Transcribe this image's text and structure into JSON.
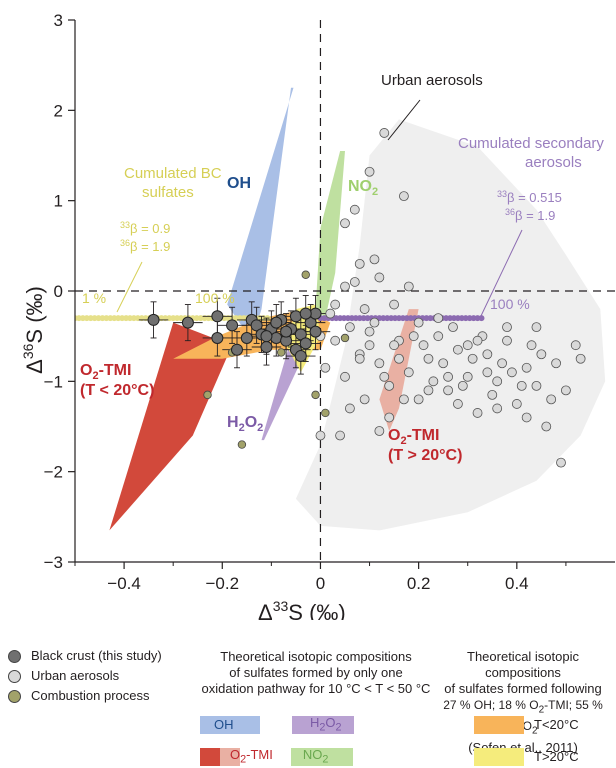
{
  "chart_data": {
    "type": "scatter",
    "xlabel": "Δ³³S (‰)",
    "ylabel": "Δ³⁶S (‰)",
    "xlim": [
      -0.5,
      0.6
    ],
    "ylim": [
      -3,
      3
    ],
    "xticks": [
      -0.4,
      -0.2,
      0,
      0.2,
      0.4
    ],
    "xtick_labels": [
      "−0.4",
      "−0.2",
      "0",
      "0.2",
      "0.4"
    ],
    "yticks": [
      -3,
      -2,
      -1,
      0,
      1,
      2,
      3
    ],
    "ytick_labels": [
      "−3",
      "−2",
      "−1",
      "0",
      "1",
      "2",
      "3"
    ],
    "reference_lines": [
      {
        "axis": "x",
        "value": 0,
        "style": "dashed"
      },
      {
        "axis": "y",
        "value": 0,
        "style": "dashed"
      }
    ],
    "colors": {
      "black_crust": "#707070",
      "urban": "#d9d9d9",
      "combustion": "#a2a26a",
      "oh": "#a9bfe6",
      "h2o2": "#b9a2d2",
      "o2tmi_dark": "#d2493b",
      "o2tmi_light": "#e9b0a3",
      "no2": "#bfe0a0",
      "t_lt20": "#f8b45a",
      "t_gt20": "#f5ec7c",
      "bc_line": "#e6e08a",
      "secondary_line": "#8c6bb1",
      "envelope": "#efefef"
    },
    "series": [
      {
        "name": "Black crust (this study)",
        "points": [
          [
            -0.34,
            -0.32
          ],
          [
            -0.27,
            -0.35
          ],
          [
            -0.21,
            -0.28
          ],
          [
            -0.21,
            -0.52
          ],
          [
            -0.18,
            -0.38
          ],
          [
            -0.17,
            -0.65
          ],
          [
            -0.15,
            -0.52
          ],
          [
            -0.14,
            -0.32
          ],
          [
            -0.13,
            -0.38
          ],
          [
            -0.12,
            -0.48
          ],
          [
            -0.11,
            -0.62
          ],
          [
            -0.1,
            -0.42
          ],
          [
            -0.09,
            -0.52
          ],
          [
            -0.08,
            -0.32
          ],
          [
            -0.07,
            -0.55
          ],
          [
            -0.06,
            -0.42
          ],
          [
            -0.05,
            -0.28
          ],
          [
            -0.04,
            -0.48
          ],
          [
            -0.03,
            -0.58
          ],
          [
            -0.02,
            -0.35
          ],
          [
            -0.01,
            -0.25
          ],
          [
            -0.05,
            -0.65
          ],
          [
            -0.09,
            -0.35
          ],
          [
            -0.11,
            -0.5
          ],
          [
            -0.07,
            -0.45
          ],
          [
            -0.04,
            -0.72
          ],
          [
            -0.03,
            -0.25
          ],
          [
            -0.01,
            -0.45
          ]
        ],
        "error_x": 0.03,
        "error_y": 0.2
      },
      {
        "name": "Urban aerosols",
        "points": [
          [
            0.03,
            -0.55
          ],
          [
            0.05,
            -0.95
          ],
          [
            0.08,
            -0.7
          ],
          [
            0.1,
            -0.45
          ],
          [
            0.12,
            -0.8
          ],
          [
            0.14,
            -1.05
          ],
          [
            0.16,
            -0.55
          ],
          [
            0.18,
            -0.9
          ],
          [
            0.2,
            -1.2
          ],
          [
            0.22,
            -0.75
          ],
          [
            0.24,
            -0.5
          ],
          [
            0.26,
            -1.1
          ],
          [
            0.28,
            -0.65
          ],
          [
            0.3,
            -0.95
          ],
          [
            0.32,
            -1.35
          ],
          [
            0.34,
            -0.7
          ],
          [
            0.36,
            -1.0
          ],
          [
            0.38,
            -0.55
          ],
          [
            0.4,
            -1.25
          ],
          [
            0.42,
            -0.85
          ],
          [
            0.44,
            -1.05
          ],
          [
            0.46,
            -1.5
          ],
          [
            0.48,
            -0.8
          ],
          [
            0.5,
            -1.1
          ],
          [
            0.52,
            -0.6
          ],
          [
            0.1,
            1.32
          ],
          [
            0.13,
            1.75
          ],
          [
            0.17,
            1.05
          ],
          [
            0.05,
            0.75
          ],
          [
            0.07,
            0.9
          ],
          [
            0.08,
            0.3
          ],
          [
            0.12,
            0.15
          ],
          [
            0.15,
            -0.15
          ],
          [
            0.18,
            0.05
          ],
          [
            0.09,
            -0.2
          ],
          [
            0.04,
            -1.6
          ],
          [
            0.06,
            -1.3
          ],
          [
            0.09,
            -1.2
          ],
          [
            0.14,
            -1.4
          ],
          [
            0.2,
            -0.35
          ],
          [
            0.23,
            -1.0
          ],
          [
            0.27,
            -0.4
          ],
          [
            0.31,
            -0.75
          ],
          [
            0.35,
            -1.15
          ],
          [
            0.39,
            -0.9
          ],
          [
            0.43,
            -0.6
          ],
          [
            0.47,
            -1.2
          ],
          [
            0.49,
            -1.9
          ],
          [
            0.53,
            -0.75
          ],
          [
            0.11,
            -0.35
          ],
          [
            0.16,
            -0.75
          ],
          [
            0.21,
            -0.6
          ],
          [
            0.25,
            -0.8
          ],
          [
            0.29,
            -1.05
          ],
          [
            0.33,
            -0.5
          ],
          [
            0.37,
            -0.8
          ],
          [
            0.41,
            -1.05
          ],
          [
            0.45,
            -0.7
          ],
          [
            0.02,
            -0.25
          ],
          [
            0.0,
            -0.5
          ],
          [
            0.01,
            -0.85
          ],
          [
            0.06,
            -0.4
          ],
          [
            0.1,
            -0.6
          ],
          [
            0.13,
            -0.95
          ],
          [
            0.19,
            -0.5
          ],
          [
            0.22,
            -1.1
          ],
          [
            0.26,
            -0.95
          ],
          [
            0.3,
            -0.6
          ],
          [
            0.34,
            -0.9
          ],
          [
            0.38,
            -0.4
          ],
          [
            0.42,
            -1.4
          ],
          [
            0.08,
            -0.75
          ],
          [
            0.15,
            -0.6
          ],
          [
            0.24,
            -0.3
          ],
          [
            0.28,
            -1.25
          ],
          [
            0.32,
            -0.55
          ],
          [
            0.36,
            -1.3
          ],
          [
            0.44,
            -0.4
          ],
          [
            0.05,
            0.05
          ],
          [
            0.11,
            0.35
          ],
          [
            0.0,
            -1.6
          ],
          [
            0.03,
            -0.15
          ],
          [
            0.07,
            0.1
          ],
          [
            0.12,
            -1.55
          ],
          [
            0.17,
            -1.2
          ]
        ]
      },
      {
        "name": "Combustion process",
        "points": [
          [
            -0.23,
            -1.15
          ],
          [
            -0.18,
            -0.68
          ],
          [
            -0.16,
            -1.7
          ],
          [
            -0.03,
            0.18
          ],
          [
            0.01,
            -1.35
          ],
          [
            -0.01,
            -1.15
          ],
          [
            0.05,
            -0.52
          ],
          [
            -0.08,
            -0.68
          ]
        ]
      }
    ],
    "annotations": [
      {
        "text": "Urban aerosols",
        "color": "#231f20"
      },
      {
        "text": "Cumulated secondary aerosols",
        "color": "#9a7fbf"
      },
      {
        "text": "Cumulated BC sulfates",
        "color": "#d6cf55"
      },
      {
        "text": "OH",
        "color": "#1f4e8c"
      },
      {
        "text": "NO₂",
        "color": "#9fcf6e"
      },
      {
        "text": "O₂-TMI (T < 20°C)",
        "color": "#c0282d"
      },
      {
        "text": "O₂-TMI (T > 20°C)",
        "color": "#c0282d"
      },
      {
        "text": "H₂O₂",
        "color": "#7b5aa6"
      },
      {
        "text": "1 %",
        "color": "#d6cf55"
      },
      {
        "text": "100 %",
        "color": "#d6cf55"
      },
      {
        "text": "100 %",
        "color": "#9a7fbf"
      },
      {
        "text": "³³β = 0.9 ³⁶β = 1.9",
        "color": "#d6cf55"
      },
      {
        "text": "³³β = 0.515 ³⁶β = 1.9",
        "color": "#9a7fbf"
      }
    ]
  },
  "labels": {
    "urban": "Urban aerosols",
    "secondary_1": "Cumulated  secondary",
    "secondary_2": "aerosols",
    "bc_1": "Cumulated BC",
    "bc_2": "sulfates",
    "oh": "OH",
    "no2_main": "NO",
    "no2_sub": "2",
    "h2o2_h": "H",
    "h2o2_2a": "2",
    "h2o2_o": "O",
    "h2o2_2b": "2",
    "o2tmi_lt_a": "O",
    "o2tmi_lt_sub": "2",
    "o2tmi_lt_b": "-TMI",
    "o2tmi_lt_c": "(T < 20°C)",
    "o2tmi_gt_a": "O",
    "o2tmi_gt_sub": "2",
    "o2tmi_gt_b": "-TMI",
    "o2tmi_gt_c": "(T > 20°C)",
    "pct1": "1 %",
    "pct100_bc": "100 %",
    "pct100_sec": "100 %",
    "beta_bc_33_sup": "33",
    "beta_bc_33": "β = 0.9",
    "beta_bc_36_sup": "36",
    "beta_bc_36": "β = 1.9",
    "beta_sec_33_sup": "33",
    "beta_sec_33": "β = 0.515",
    "beta_sec_36_sup": "36",
    "beta_sec_36": "β = 1.9",
    "xlabel_delta": "Δ",
    "xlabel_sup": "33",
    "xlabel_rest": "S (‰)",
    "ylabel_delta": "Δ",
    "ylabel_sup": "36",
    "ylabel_rest": "S (‰)"
  },
  "legend": {
    "points": [
      {
        "label": "Black crust (this study)",
        "color": "#707070"
      },
      {
        "label": "Urban aerosols",
        "color": "#d9d9d9"
      },
      {
        "label": "Combustion process",
        "color": "#a2a26a"
      }
    ],
    "mid_title_1": "Theoretical isotopic compositions",
    "mid_title_2": "of sulfates formed by only one",
    "mid_title_3": "oxidation pathway for 10 °C < T < 50 °C",
    "right_title_1": "Theoretical isotopic compositions",
    "right_title_2": "of sulfates formed following",
    "right_title_3a": "27 % OH; 18 % O",
    "right_title_3sub1": "2",
    "right_title_3b": "-TMI; 55 % H",
    "right_title_3sub2": "2",
    "right_title_3c": "O",
    "right_title_3sub3": "2",
    "right_title_4": "(Sofen et al., 2011)",
    "oh": "OH",
    "h2o2_a": "H",
    "h2o2_s1": "2",
    "h2o2_b": "O",
    "h2o2_s2": "2",
    "o2tmi_a": "O",
    "o2tmi_s": "2",
    "o2tmi_b": "-TMI",
    "no2_a": "NO",
    "no2_s": "2",
    "t_lt": "T<20°C",
    "t_gt": "T>20°C"
  }
}
